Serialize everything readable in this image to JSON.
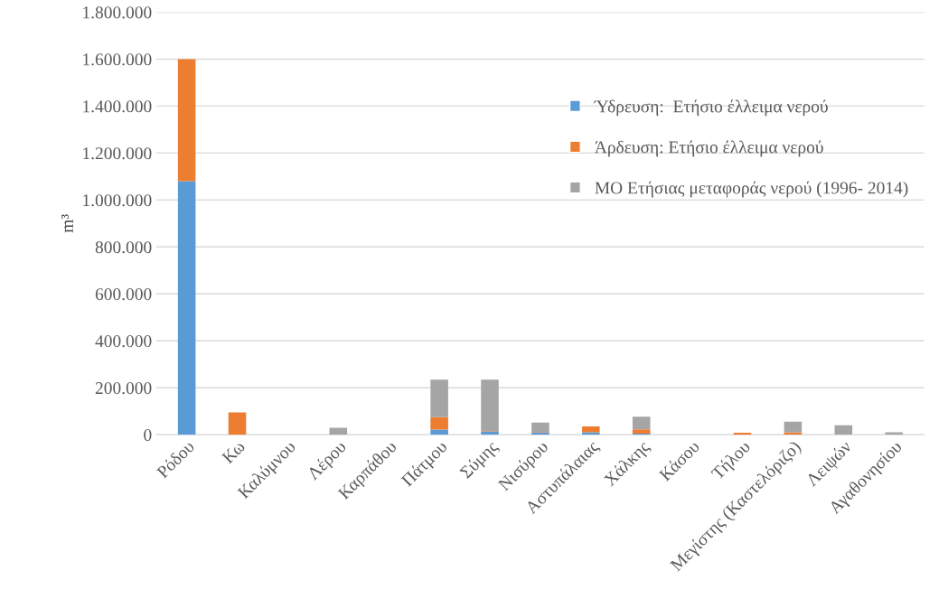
{
  "chart_data": {
    "type": "bar",
    "stacked": true,
    "ylabel": "m³",
    "categories": [
      "Ρόδου",
      "Κω",
      "Καλύμνου",
      "Λέρου",
      "Καρπάθου",
      "Πάτμου",
      "Σύμης",
      "Νισύρου",
      "Αστυπάλαιας",
      "Χάλκης",
      "Κάσου",
      "Τήλου",
      "Μεγίστης (Καστελόριζο)",
      "Λειψών",
      "Αγαθονησίου"
    ],
    "series": [
      {
        "name": "Ύδρευση:  Ετήσιο έλλειμα νερού",
        "color": "#5b9bd5",
        "values": [
          1080000,
          0,
          0,
          0,
          0,
          22000,
          14000,
          10000,
          10000,
          5000,
          0,
          0,
          0,
          0,
          0
        ]
      },
      {
        "name": "Άρδευση: Ετήσιο έλλειμα νερού",
        "color": "#ed7d31",
        "values": [
          520000,
          95000,
          0,
          0,
          0,
          53000,
          2000,
          2000,
          25000,
          18000,
          0,
          8000,
          10000,
          0,
          0
        ]
      },
      {
        "name": "ΜΟ Ετήσιας μεταφοράς νερού (1996- 2014)",
        "color": "#a5a5a5",
        "values": [
          0,
          0,
          0,
          30000,
          0,
          160000,
          219000,
          40000,
          0,
          54000,
          0,
          0,
          46000,
          40000,
          10000
        ]
      }
    ],
    "ylim": [
      0,
      1800000
    ],
    "yticks": [
      {
        "value": 0,
        "label": "0"
      },
      {
        "value": 200000,
        "label": "200.000"
      },
      {
        "value": 400000,
        "label": "400.000"
      },
      {
        "value": 600000,
        "label": "600.000"
      },
      {
        "value": 800000,
        "label": "800.000"
      },
      {
        "value": 1000000,
        "label": "1.000.000"
      },
      {
        "value": 1200000,
        "label": "1.200.000"
      },
      {
        "value": 1400000,
        "label": "1.400.000"
      },
      {
        "value": 1600000,
        "label": "1.600.000"
      },
      {
        "value": 1800000,
        "label": "1.800.000"
      }
    ],
    "grid": "y",
    "legend": "top right"
  }
}
